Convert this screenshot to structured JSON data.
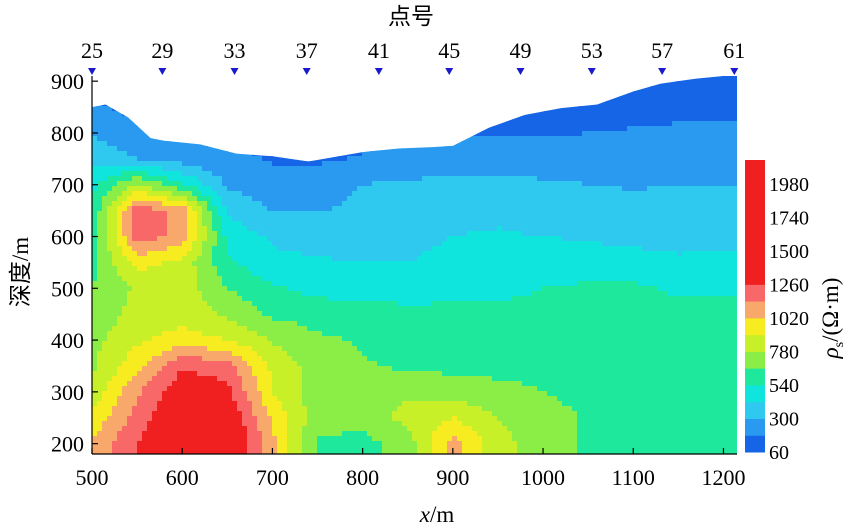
{
  "chart_data": {
    "type": "heatmap",
    "title": "",
    "top_axis": {
      "title": "点号",
      "labels": [
        "25",
        "29",
        "33",
        "37",
        "41",
        "45",
        "49",
        "53",
        "57",
        "61"
      ],
      "positions_m": [
        500,
        578,
        658,
        738,
        818,
        896,
        975,
        1054,
        1132,
        1212
      ],
      "marker_color": "#1a1acc"
    },
    "xlabel": "x/m",
    "xlabel_parts": {
      "italic": "x",
      "rest": "/m"
    },
    "ylabel": "深度/m",
    "x_ticks": [
      500,
      600,
      700,
      800,
      900,
      1000,
      1100,
      1200
    ],
    "y_ticks": [
      200,
      300,
      400,
      500,
      600,
      700,
      800,
      900
    ],
    "xlim": [
      500,
      1215
    ],
    "ylim": [
      180,
      910
    ],
    "surface": {
      "x": [
        500,
        515,
        540,
        565,
        580,
        620,
        660,
        700,
        740,
        780,
        800,
        840,
        880,
        900,
        940,
        980,
        1020,
        1060,
        1100,
        1130,
        1150,
        1170,
        1200,
        1215
      ],
      "depth": [
        850,
        855,
        830,
        790,
        785,
        778,
        760,
        755,
        745,
        757,
        763,
        770,
        773,
        775,
        810,
        835,
        848,
        855,
        880,
        895,
        900,
        905,
        910,
        910
      ]
    },
    "colorbar": {
      "label": "ρs/(Ω·m)",
      "label_parts": {
        "rho": "ρ",
        "sub": "s",
        "rest": "/(Ω·m)"
      },
      "tick_labels": [
        "1980",
        "1740",
        "1500",
        "1260",
        "1020",
        "780",
        "540",
        "300",
        "60"
      ],
      "tick_values": [
        1980,
        1740,
        1500,
        1260,
        1020,
        780,
        540,
        300,
        60
      ],
      "range": [
        60,
        2150
      ],
      "levels": [
        60,
        180,
        300,
        420,
        540,
        660,
        780,
        900,
        1020,
        1140,
        1260
      ],
      "colors": [
        "#1565e6",
        "#2a9af0",
        "#2fc9ef",
        "#10e5dd",
        "#1ee89b",
        "#8aee47",
        "#c8f028",
        "#f6ec20",
        "#f8a86a",
        "#f86868",
        "#f02020"
      ]
    },
    "field": {
      "x": [
        500,
        550,
        600,
        650,
        700,
        750,
        800,
        850,
        900,
        950,
        1000,
        1050,
        1100,
        1150,
        1200
      ],
      "depth": [
        200,
        250,
        300,
        350,
        400,
        450,
        500,
        550,
        600,
        650,
        700,
        750,
        800,
        850,
        900
      ],
      "resistivity": [
        [
          1050,
          1250,
          1450,
          1450,
          1050,
          650,
          610,
          720,
          1060,
          830,
          700,
          650,
          640,
          620,
          640
        ],
        [
          920,
          1200,
          1400,
          1380,
          1000,
          700,
          720,
          820,
          900,
          780,
          700,
          650,
          640,
          620,
          640
        ],
        [
          820,
          1120,
          1350,
          1300,
          900,
          720,
          730,
          760,
          720,
          700,
          660,
          630,
          640,
          620,
          640
        ],
        [
          760,
          980,
          1250,
          1200,
          870,
          720,
          670,
          640,
          630,
          620,
          620,
          620,
          640,
          620,
          640
        ],
        [
          740,
          880,
          950,
          900,
          770,
          680,
          650,
          620,
          610,
          590,
          580,
          580,
          620,
          600,
          620
        ],
        [
          700,
          820,
          850,
          760,
          640,
          610,
          590,
          580,
          570,
          560,
          560,
          560,
          590,
          580,
          590
        ],
        [
          660,
          800,
          850,
          660,
          560,
          500,
          480,
          480,
          500,
          520,
          540,
          560,
          560,
          520,
          520
        ],
        [
          620,
          950,
          860,
          560,
          450,
          430,
          420,
          420,
          440,
          460,
          470,
          470,
          460,
          440,
          440
        ],
        [
          590,
          1200,
          1100,
          500,
          400,
          380,
          380,
          400,
          420,
          430,
          420,
          410,
          390,
          380,
          400
        ],
        [
          560,
          1220,
          1100,
          400,
          300,
          290,
          330,
          360,
          390,
          400,
          380,
          360,
          340,
          340,
          360
        ],
        [
          500,
          800,
          560,
          280,
          220,
          250,
          300,
          320,
          330,
          340,
          320,
          300,
          290,
          300,
          300
        ],
        [
          380,
          300,
          240,
          210,
          170,
          160,
          190,
          220,
          240,
          240,
          230,
          230,
          230,
          250,
          250
        ],
        [
          300,
          190,
          180,
          170,
          140,
          130,
          150,
          160,
          170,
          170,
          170,
          180,
          190,
          200,
          200
        ],
        [
          200,
          150,
          140,
          120,
          110,
          100,
          100,
          110,
          120,
          120,
          120,
          130,
          140,
          150,
          150
        ],
        [
          150,
          100,
          90,
          80,
          80,
          80,
          80,
          80,
          80,
          80,
          80,
          90,
          100,
          110,
          110
        ]
      ]
    }
  }
}
